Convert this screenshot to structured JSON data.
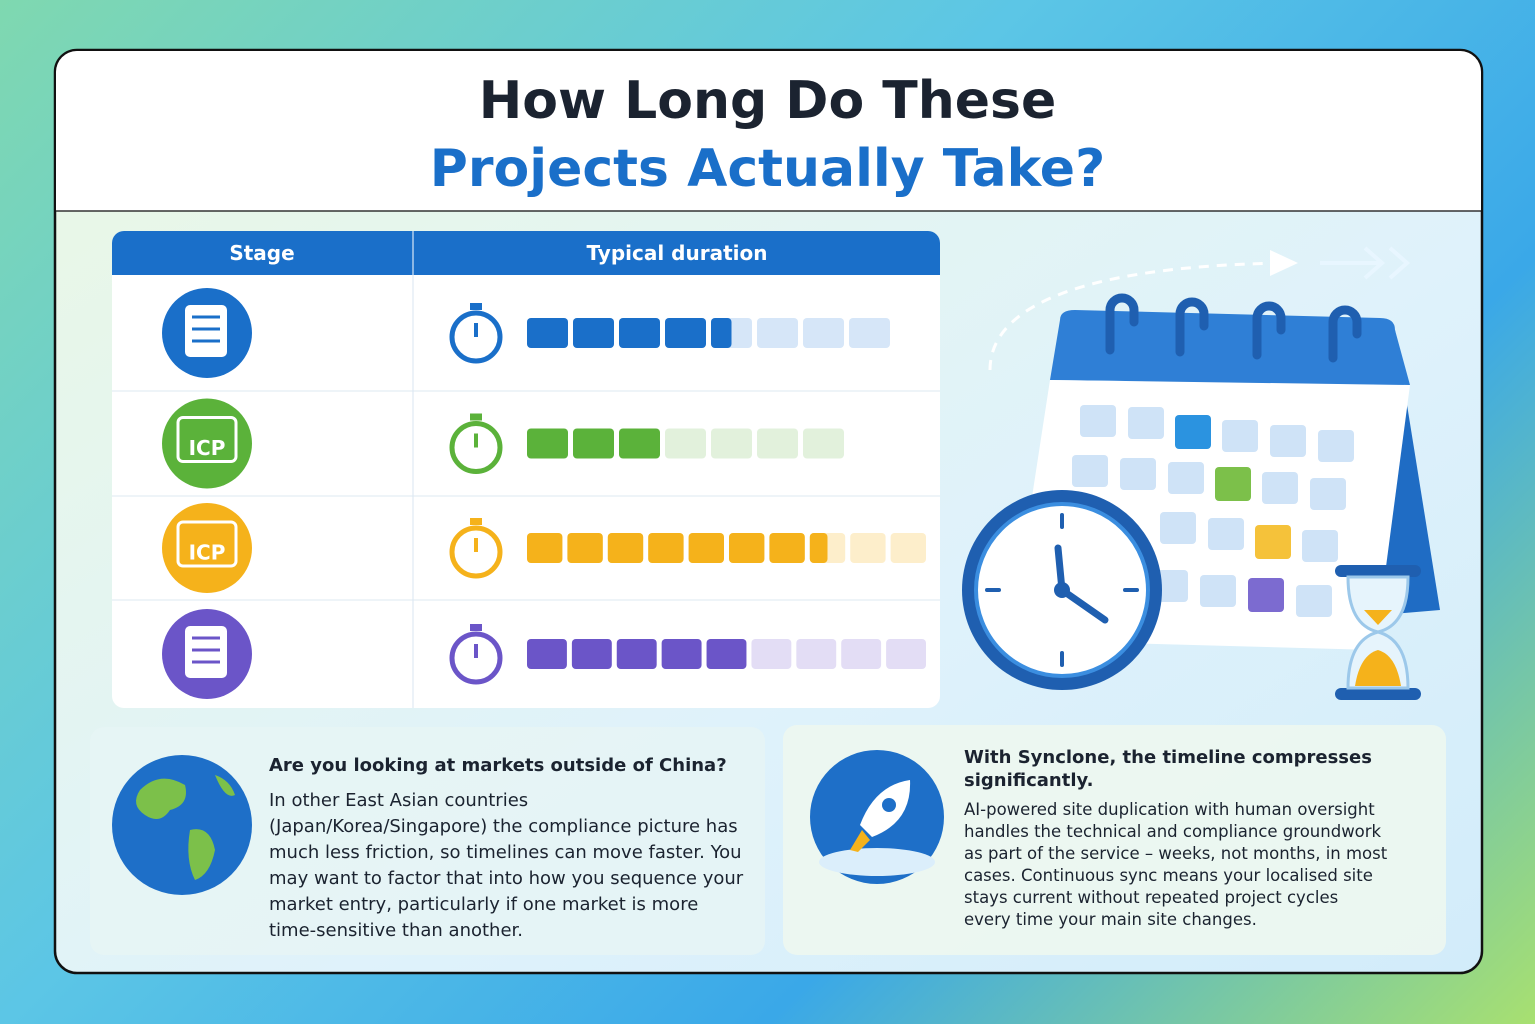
{
  "header": {
    "title_line1": "How Long Do These",
    "title_line2": "Projects Actually Take?"
  },
  "table": {
    "columns": [
      "Stage",
      "Typical duration"
    ],
    "rows": [
      {
        "icon_label": null,
        "color": "#1a6fc9",
        "light": "#d6e6f8",
        "filled": 4.5,
        "total": 8
      },
      {
        "icon_label": "ICP",
        "color": "#5bb23a",
        "light": "#e2f1dc",
        "filled": 3,
        "total": 7
      },
      {
        "icon_label": "ICP",
        "color": "#f5b21b",
        "light": "#fdeecb",
        "filled": 7.5,
        "total": 10
      },
      {
        "icon_label": null,
        "color": "#6b55c8",
        "light": "#e3ddf5",
        "filled": 5,
        "total": 9
      }
    ]
  },
  "notes": [
    {
      "heading": "Are you looking at markets outside of China?",
      "body": "In other East Asian countries (Japan/Korea/Singapore) the compliance picture has much less friction, so timelines can move faster. You may want to factor that into how you sequence your market entry, particularly if one market is more time-sensitive than another."
    },
    {
      "heading": "With Synclone, the timeline compresses significantly.",
      "body": "AI-powered site duplication with human oversight handles the technical and compliance groundwork as part of the service – weeks, not months, in most cases. Continuous sync means your localised site stays current without repeated project cycles every time your main site changes."
    }
  ]
}
